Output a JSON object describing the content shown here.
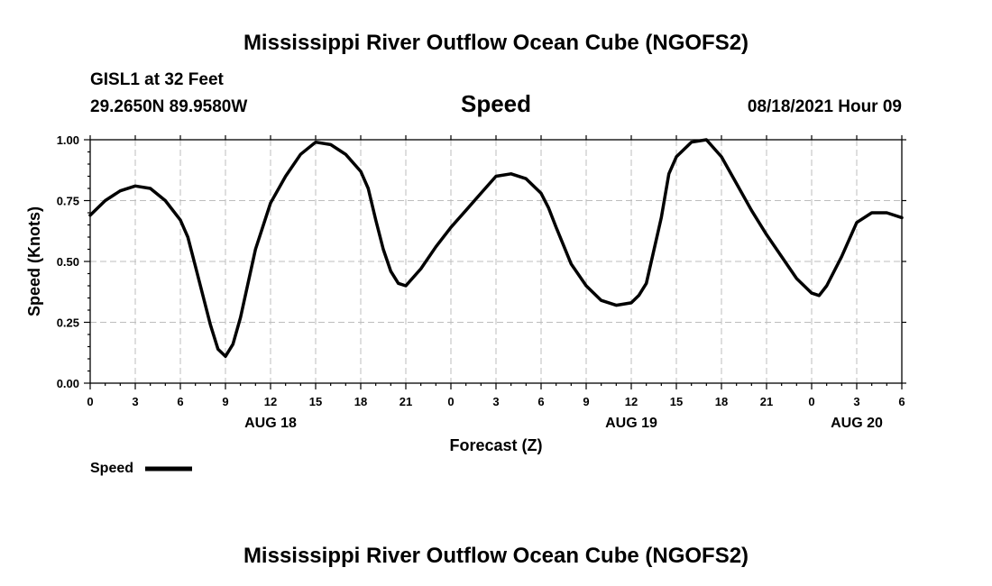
{
  "header": {
    "title": "Mississippi River Outflow Ocean Cube (NGOFS2)",
    "station": "GISL1 at 32 Feet",
    "coords": "29.2650N  89.9580W",
    "datetime": "08/18/2021 Hour 09",
    "footer_title": "Mississippi River Outflow Ocean Cube (NGOFS2)"
  },
  "chart_data": {
    "type": "line",
    "title": "Speed",
    "xlabel": "Forecast (Z)",
    "ylabel": "Speed (Knots)",
    "xlim": [
      0,
      54
    ],
    "ylim": [
      0,
      1.0
    ],
    "yticks": [
      0.0,
      0.25,
      0.5,
      0.75,
      1.0
    ],
    "ytick_labels": [
      "0.00",
      "0.25",
      "0.50",
      "0.75",
      "1.00"
    ],
    "xtick_labels": [
      "0",
      "3",
      "6",
      "9",
      "12",
      "15",
      "18",
      "21",
      "0",
      "3",
      "6",
      "9",
      "12",
      "15",
      "18",
      "21",
      "0",
      "3",
      "6"
    ],
    "date_labels": [
      {
        "label": "AUG 18",
        "hour": 12
      },
      {
        "label": "AUG 19",
        "hour": 36
      },
      {
        "label": "AUG 20",
        "hour": 51
      }
    ],
    "grid": true,
    "legend": {
      "label": "Speed",
      "position": "bottom-left"
    },
    "series": [
      {
        "name": "Speed",
        "color": "#000000",
        "x": [
          0,
          1,
          2,
          3,
          4,
          5,
          6,
          6.5,
          7,
          7.5,
          8,
          8.5,
          9,
          9.5,
          10,
          11,
          12,
          13,
          14,
          15,
          16,
          17,
          18,
          18.5,
          19,
          19.5,
          20,
          20.5,
          21,
          22,
          23,
          24,
          25,
          26,
          27,
          28,
          29,
          30,
          30.5,
          31,
          32,
          33,
          34,
          35,
          36,
          36.5,
          37,
          38,
          38.5,
          39,
          40,
          41,
          42,
          43,
          44,
          45,
          46,
          47,
          48,
          48.5,
          49,
          50,
          51,
          52,
          53,
          54
        ],
        "y": [
          0.69,
          0.75,
          0.79,
          0.81,
          0.8,
          0.75,
          0.67,
          0.6,
          0.48,
          0.36,
          0.24,
          0.14,
          0.11,
          0.16,
          0.27,
          0.55,
          0.74,
          0.85,
          0.94,
          0.99,
          0.98,
          0.94,
          0.87,
          0.8,
          0.67,
          0.55,
          0.46,
          0.41,
          0.4,
          0.47,
          0.56,
          0.64,
          0.71,
          0.78,
          0.85,
          0.86,
          0.84,
          0.78,
          0.72,
          0.64,
          0.49,
          0.4,
          0.34,
          0.32,
          0.33,
          0.36,
          0.41,
          0.68,
          0.86,
          0.93,
          0.99,
          1.0,
          0.93,
          0.82,
          0.71,
          0.61,
          0.52,
          0.43,
          0.37,
          0.36,
          0.4,
          0.52,
          0.66,
          0.7,
          0.7,
          0.68
        ]
      }
    ]
  }
}
